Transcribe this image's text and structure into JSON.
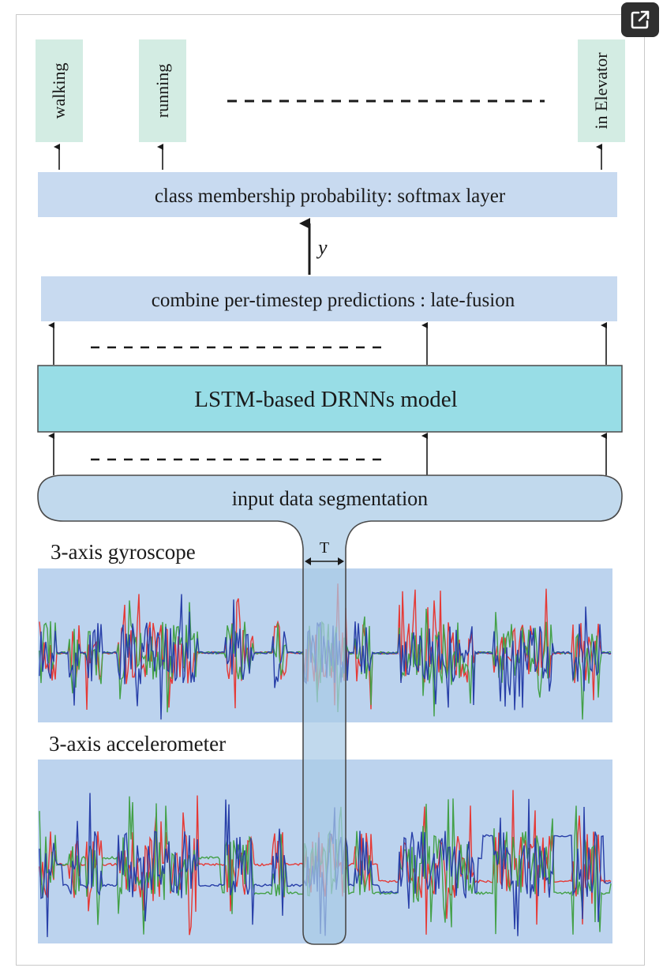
{
  "open_button": {
    "icon": "external-link-icon"
  },
  "outputs": {
    "classes": [
      "walking",
      "running",
      "in Elevator"
    ],
    "softmax_label": "class membership probability: softmax layer",
    "y_symbol": "y"
  },
  "fusion_label": "combine per-timestep predictions : late-fusion",
  "model_label": "LSTM-based DRNNs model",
  "segmentation_label": "input data segmentation",
  "window_label": "T",
  "signals": {
    "gyroscope_label": "3-axis gyroscope",
    "accelerometer_label": "3-axis accelerometer",
    "axis_colors": [
      "#e53935",
      "#43a047",
      "#283fa8"
    ]
  },
  "colors": {
    "class_box": "#d3ece3",
    "light_box": "#c8daf0",
    "model_box": "#98dde6",
    "signal_panel": "#bcd3ee",
    "open_button": "#2f2f2f"
  }
}
